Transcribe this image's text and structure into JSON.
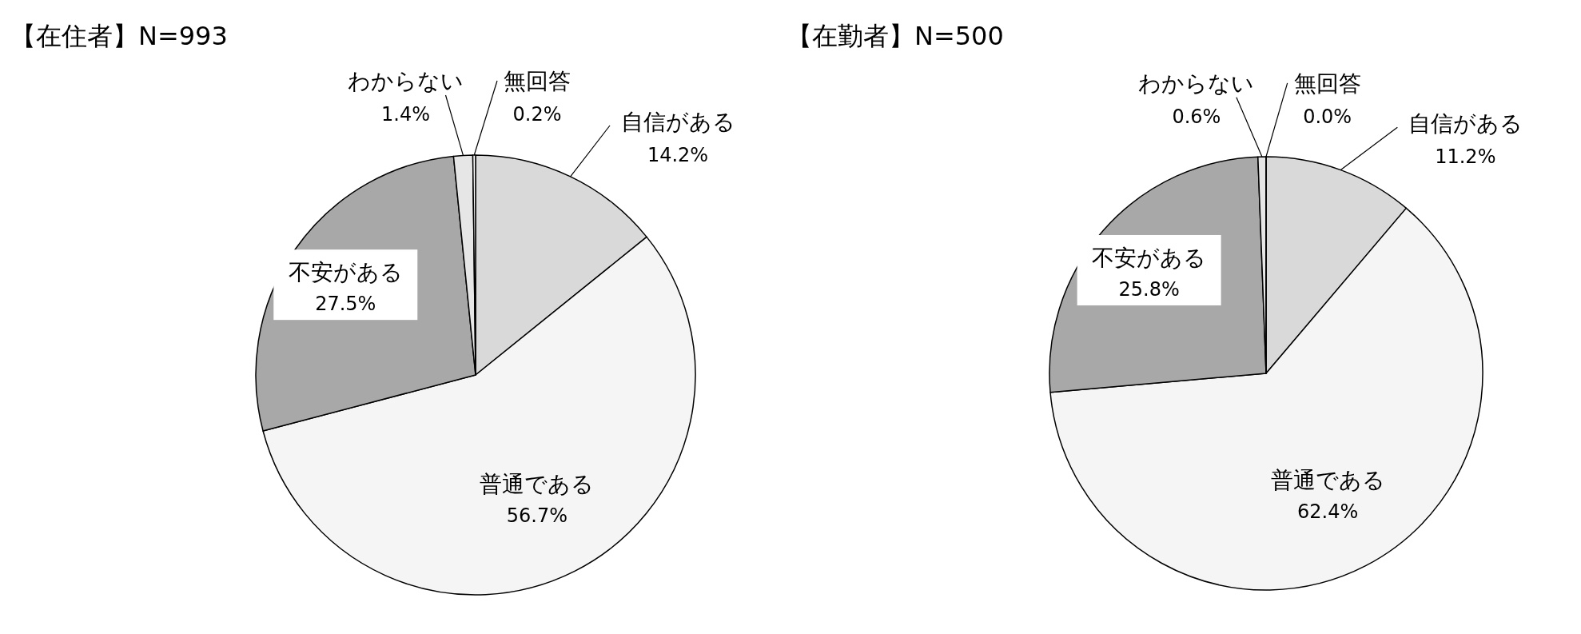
{
  "chart_data": [
    {
      "type": "pie",
      "title": "【在住者】N=993",
      "categories": [
        "自信がある",
        "普通である",
        "不安がある",
        "わからない",
        "無回答"
      ],
      "values": [
        14.2,
        56.7,
        27.5,
        1.4,
        0.2
      ],
      "value_labels": [
        "14.2%",
        "56.7%",
        "27.5%",
        "1.4%",
        "0.2%"
      ],
      "colors": [
        "#d9d9d9",
        "#f5f5f5",
        "#a8a8a8",
        "#e6e6e6",
        "#ffffff"
      ]
    },
    {
      "type": "pie",
      "title": "【在勤者】N=500",
      "categories": [
        "自信がある",
        "普通である",
        "不安がある",
        "わからない",
        "無回答"
      ],
      "values": [
        11.2,
        62.4,
        25.8,
        0.6,
        0.0
      ],
      "value_labels": [
        "11.2%",
        "62.4%",
        "25.8%",
        "0.6%",
        "0.0%"
      ],
      "colors": [
        "#d9d9d9",
        "#f5f5f5",
        "#a8a8a8",
        "#e6e6e6",
        "#ffffff"
      ]
    }
  ]
}
